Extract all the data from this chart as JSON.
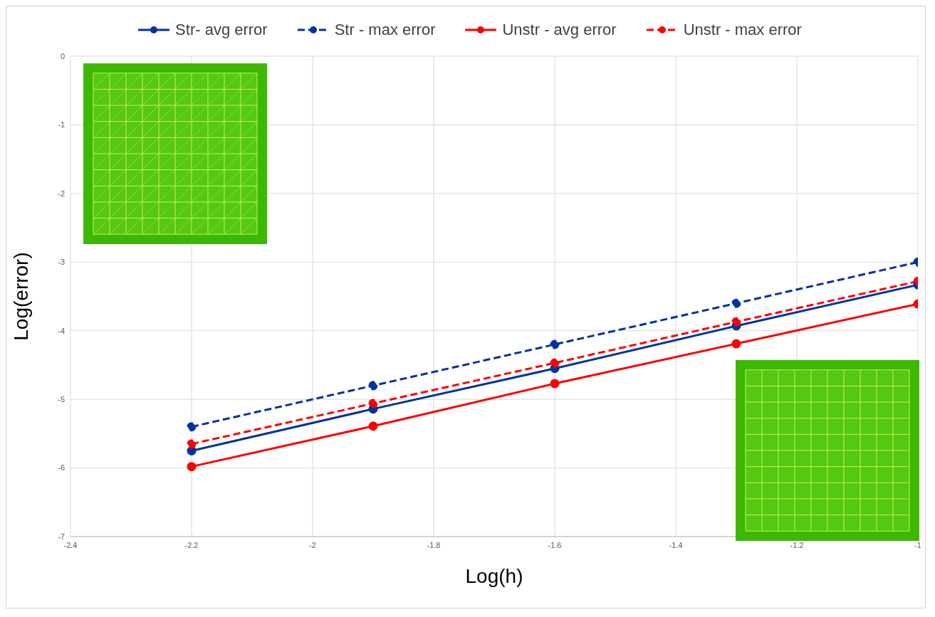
{
  "chart_data": {
    "type": "line",
    "xlabel": "Log(h)",
    "ylabel": "Log(error)",
    "x": [
      -2.2,
      -1.9,
      -1.6,
      -1.3,
      -1
    ],
    "series": [
      {
        "name": "Str- avg error",
        "color": "#0033a0",
        "values": [
          -5.75,
          -5.14,
          -4.55,
          -3.93,
          -3.33
        ],
        "line_style": "solid"
      },
      {
        "name": "Str - max error",
        "color": "#0033a0",
        "values": [
          -5.4,
          -4.8,
          -4.2,
          -3.6,
          -3.0
        ],
        "line_style": "dashed"
      },
      {
        "name": "Unstr - avg error",
        "color": "#ff0000",
        "values": [
          -5.98,
          -5.39,
          -4.77,
          -4.19,
          -3.61
        ],
        "line_style": "solid"
      },
      {
        "name": "Unstr - max error",
        "color": "#ff0000",
        "values": [
          -5.65,
          -5.06,
          -4.47,
          -3.87,
          -3.28
        ],
        "line_style": "dashed"
      }
    ],
    "xlim": [
      -2.4,
      -1
    ],
    "xticks": [
      -2.4,
      -2.2,
      -2,
      -1.8,
      -1.6,
      -1.4,
      -1.2,
      -1
    ],
    "ylim": [
      -7,
      0
    ],
    "yticks": [
      -7,
      -6,
      -5,
      -4,
      -3,
      -2,
      -1,
      0
    ],
    "grid": true,
    "legend": "top",
    "marker": "circle"
  }
}
